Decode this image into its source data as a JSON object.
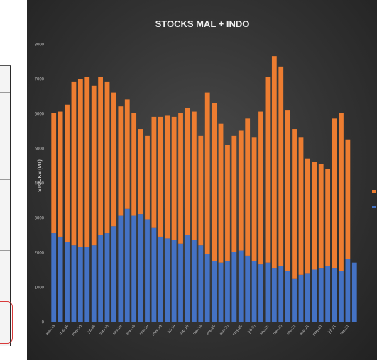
{
  "chart_data": {
    "type": "bar",
    "stacked": true,
    "title": "STOCKS MAL + INDO",
    "ylabel": "STOCKS (MT)",
    "ylim": [
      0,
      8000
    ],
    "yticks": [
      0,
      1000,
      2000,
      3000,
      4000,
      5000,
      6000,
      7000,
      8000
    ],
    "grid": false,
    "legend_position": "right",
    "x_tick_labels": [
      "mar-18",
      "mai-18",
      "may-18",
      "jul-18",
      "sep-18",
      "nov-18",
      "ene-19",
      "mar-19",
      "may-19",
      "jul-19",
      "sep-19",
      "nov-19",
      "ene-20",
      "mar-20",
      "may-20",
      "jul-20",
      "sep-20",
      "nov-20",
      "ene-21",
      "mar-21",
      "may-21",
      "jul-21",
      "sep-21"
    ],
    "series": [
      {
        "color": "#4472c4",
        "values": [
          2550,
          2450,
          2300,
          2200,
          2150,
          2150,
          2200,
          2500,
          2550,
          2750,
          3050,
          3250,
          3050,
          3100,
          2950,
          2700,
          2450,
          2400,
          2350,
          2250,
          2500,
          2350,
          2200,
          1950,
          1750,
          1700,
          1750,
          2000,
          2050,
          1900,
          1750,
          1650,
          1700,
          1550,
          1600,
          1450,
          1250,
          1350,
          1400,
          1500,
          1550,
          1600,
          1550,
          1450,
          1800,
          1700
        ]
      },
      {
        "color": "#ed7d31",
        "values": [
          3450,
          3600,
          3950,
          4700,
          4850,
          4900,
          4600,
          4550,
          4350,
          3850,
          3150,
          3150,
          2950,
          2450,
          2400,
          3200,
          3450,
          3550,
          3550,
          3750,
          3650,
          3700,
          3150,
          4650,
          4550,
          4000,
          3350,
          3350,
          3450,
          3950,
          3550,
          4400,
          5350,
          6100,
          5750,
          4650,
          4300,
          3950,
          3300,
          3100,
          3000,
          2800,
          4300,
          4550,
          3450,
          0
        ]
      }
    ]
  }
}
